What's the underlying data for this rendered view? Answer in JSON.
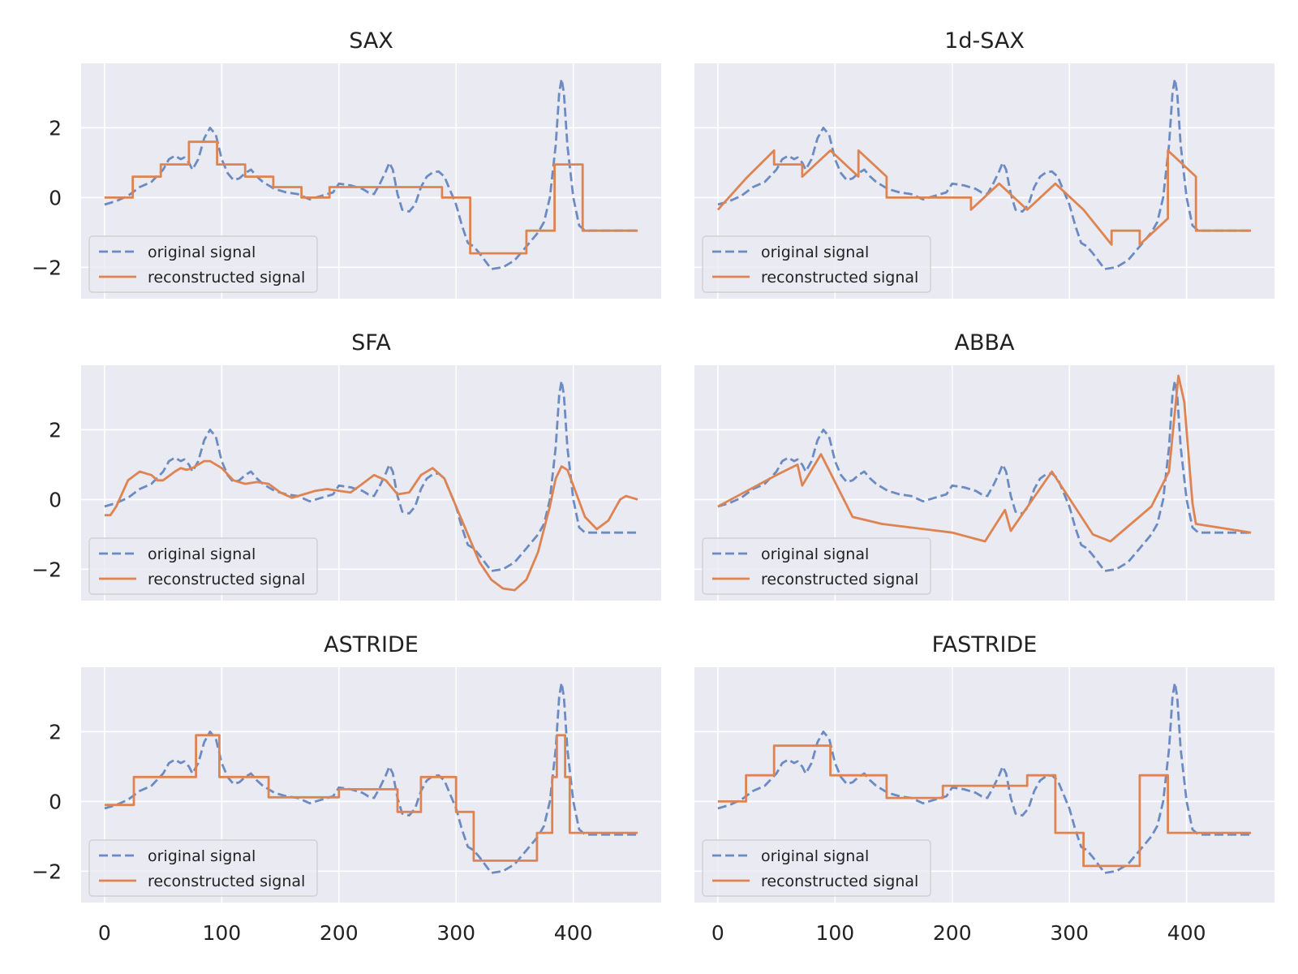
{
  "chart_data": {
    "type": "line",
    "layout": "3x2 grid of subplots, shared x and y axes",
    "x_ticks": [
      0,
      100,
      200,
      300,
      400
    ],
    "y_ticks": [
      -2,
      0,
      2
    ],
    "x_tick_labels": [
      "0",
      "100",
      "200",
      "300",
      "400"
    ],
    "y_tick_labels": [
      "−2",
      "0",
      "2"
    ],
    "xlim": [
      -20,
      475
    ],
    "ylim": [
      -2.9,
      3.85
    ],
    "legend_placement": "lower-left",
    "legend": [
      {
        "label": "original signal",
        "style": "dashed",
        "color": "#6b8bc3"
      },
      {
        "label": "reconstructed signal",
        "style": "solid",
        "color": "#dd8452"
      }
    ],
    "original_signal": {
      "name": "original signal",
      "points": [
        [
          0,
          -0.2
        ],
        [
          10,
          -0.1
        ],
        [
          20,
          0.05
        ],
        [
          30,
          0.3
        ],
        [
          40,
          0.45
        ],
        [
          50,
          0.8
        ],
        [
          55,
          1.1
        ],
        [
          60,
          1.2
        ],
        [
          65,
          1.1
        ],
        [
          68,
          1.15
        ],
        [
          72,
          1.0
        ],
        [
          75,
          0.8
        ],
        [
          80,
          1.1
        ],
        [
          85,
          1.7
        ],
        [
          90,
          2.0
        ],
        [
          95,
          1.8
        ],
        [
          100,
          1.1
        ],
        [
          105,
          0.7
        ],
        [
          110,
          0.5
        ],
        [
          115,
          0.55
        ],
        [
          120,
          0.7
        ],
        [
          125,
          0.8
        ],
        [
          130,
          0.6
        ],
        [
          135,
          0.45
        ],
        [
          145,
          0.25
        ],
        [
          155,
          0.15
        ],
        [
          165,
          0.1
        ],
        [
          175,
          -0.05
        ],
        [
          185,
          0.05
        ],
        [
          195,
          0.15
        ],
        [
          200,
          0.4
        ],
        [
          210,
          0.35
        ],
        [
          220,
          0.25
        ],
        [
          225,
          0.15
        ],
        [
          230,
          0.1
        ],
        [
          235,
          0.4
        ],
        [
          240,
          0.75
        ],
        [
          243,
          1.0
        ],
        [
          246,
          0.8
        ],
        [
          250,
          0.1
        ],
        [
          254,
          -0.35
        ],
        [
          260,
          -0.4
        ],
        [
          265,
          -0.2
        ],
        [
          270,
          0.3
        ],
        [
          275,
          0.6
        ],
        [
          280,
          0.72
        ],
        [
          285,
          0.75
        ],
        [
          290,
          0.6
        ],
        [
          295,
          0.2
        ],
        [
          300,
          -0.2
        ],
        [
          305,
          -0.8
        ],
        [
          310,
          -1.3
        ],
        [
          315,
          -1.4
        ],
        [
          320,
          -1.6
        ],
        [
          330,
          -2.05
        ],
        [
          340,
          -2.0
        ],
        [
          350,
          -1.8
        ],
        [
          360,
          -1.4
        ],
        [
          370,
          -1.0
        ],
        [
          375,
          -0.7
        ],
        [
          380,
          0.0
        ],
        [
          385,
          1.5
        ],
        [
          388,
          3.0
        ],
        [
          390,
          3.4
        ],
        [
          392,
          3.0
        ],
        [
          395,
          1.5
        ],
        [
          400,
          0.0
        ],
        [
          405,
          -0.8
        ],
        [
          410,
          -0.95
        ],
        [
          420,
          -0.95
        ],
        [
          430,
          -0.95
        ],
        [
          440,
          -0.95
        ],
        [
          455,
          -0.95
        ]
      ]
    },
    "subplots": [
      {
        "title": "SAX",
        "reconstructed": [
          [
            0,
            0
          ],
          [
            24,
            0
          ],
          [
            24,
            0.6
          ],
          [
            48,
            0.6
          ],
          [
            48,
            0.95
          ],
          [
            72,
            0.95
          ],
          [
            72,
            1.6
          ],
          [
            96,
            1.6
          ],
          [
            96,
            0.95
          ],
          [
            120,
            0.95
          ],
          [
            120,
            0.6
          ],
          [
            144,
            0.6
          ],
          [
            144,
            0.3
          ],
          [
            168,
            0.3
          ],
          [
            168,
            0
          ],
          [
            192,
            0
          ],
          [
            192,
            0.3
          ],
          [
            216,
            0.3
          ],
          [
            240,
            0.3
          ],
          [
            264,
            0.3
          ],
          [
            288,
            0.3
          ],
          [
            288,
            0
          ],
          [
            312,
            0
          ],
          [
            312,
            -1.6
          ],
          [
            336,
            -1.6
          ],
          [
            360,
            -1.6
          ],
          [
            360,
            -0.95
          ],
          [
            384,
            -0.95
          ],
          [
            384,
            0.95
          ],
          [
            408,
            0.95
          ],
          [
            408,
            -0.95
          ],
          [
            432,
            -0.95
          ],
          [
            455,
            -0.95
          ]
        ]
      },
      {
        "title": "1d-SAX",
        "reconstructed": [
          [
            0,
            -0.35
          ],
          [
            24,
            0.55
          ],
          [
            48,
            1.35
          ],
          [
            48,
            0.95
          ],
          [
            72,
            0.95
          ],
          [
            72,
            0.6
          ],
          [
            96,
            1.35
          ],
          [
            120,
            0.6
          ],
          [
            120,
            1.35
          ],
          [
            144,
            0.6
          ],
          [
            144,
            0
          ],
          [
            168,
            0
          ],
          [
            192,
            0
          ],
          [
            216,
            0
          ],
          [
            216,
            -0.35
          ],
          [
            240,
            0.4
          ],
          [
            264,
            -0.35
          ],
          [
            288,
            0.4
          ],
          [
            312,
            -0.35
          ],
          [
            336,
            -1.35
          ],
          [
            336,
            -0.95
          ],
          [
            360,
            -0.95
          ],
          [
            360,
            -1.35
          ],
          [
            384,
            -0.6
          ],
          [
            384,
            1.35
          ],
          [
            408,
            0.6
          ],
          [
            408,
            -0.95
          ],
          [
            432,
            -0.95
          ],
          [
            455,
            -0.95
          ]
        ]
      },
      {
        "title": "SFA",
        "reconstructed": [
          [
            0,
            -0.45
          ],
          [
            5,
            -0.45
          ],
          [
            10,
            -0.2
          ],
          [
            20,
            0.55
          ],
          [
            30,
            0.8
          ],
          [
            40,
            0.7
          ],
          [
            45,
            0.55
          ],
          [
            50,
            0.55
          ],
          [
            60,
            0.8
          ],
          [
            65,
            0.9
          ],
          [
            70,
            0.85
          ],
          [
            75,
            0.9
          ],
          [
            85,
            1.1
          ],
          [
            90,
            1.1
          ],
          [
            100,
            0.9
          ],
          [
            110,
            0.55
          ],
          [
            120,
            0.45
          ],
          [
            130,
            0.5
          ],
          [
            140,
            0.45
          ],
          [
            150,
            0.2
          ],
          [
            160,
            0.05
          ],
          [
            170,
            0.15
          ],
          [
            180,
            0.25
          ],
          [
            190,
            0.3
          ],
          [
            200,
            0.25
          ],
          [
            210,
            0.2
          ],
          [
            220,
            0.45
          ],
          [
            230,
            0.7
          ],
          [
            240,
            0.55
          ],
          [
            250,
            0.15
          ],
          [
            260,
            0.2
          ],
          [
            270,
            0.7
          ],
          [
            280,
            0.9
          ],
          [
            290,
            0.6
          ],
          [
            300,
            -0.2
          ],
          [
            310,
            -1.0
          ],
          [
            320,
            -1.8
          ],
          [
            330,
            -2.3
          ],
          [
            340,
            -2.55
          ],
          [
            350,
            -2.6
          ],
          [
            360,
            -2.3
          ],
          [
            370,
            -1.5
          ],
          [
            380,
            -0.2
          ],
          [
            385,
            0.6
          ],
          [
            390,
            0.95
          ],
          [
            395,
            0.85
          ],
          [
            400,
            0.4
          ],
          [
            410,
            -0.5
          ],
          [
            420,
            -0.85
          ],
          [
            430,
            -0.6
          ],
          [
            440,
            0.0
          ],
          [
            445,
            0.1
          ],
          [
            450,
            0.05
          ],
          [
            455,
            0.0
          ]
        ]
      },
      {
        "title": "ABBA",
        "reconstructed": [
          [
            0,
            -0.2
          ],
          [
            25,
            0.25
          ],
          [
            50,
            0.7
          ],
          [
            68,
            1.0
          ],
          [
            72,
            0.4
          ],
          [
            88,
            1.3
          ],
          [
            115,
            -0.5
          ],
          [
            140,
            -0.7
          ],
          [
            200,
            -0.95
          ],
          [
            228,
            -1.2
          ],
          [
            245,
            -0.3
          ],
          [
            250,
            -0.9
          ],
          [
            285,
            0.8
          ],
          [
            320,
            -1.0
          ],
          [
            335,
            -1.2
          ],
          [
            370,
            -0.2
          ],
          [
            385,
            0.8
          ],
          [
            393,
            3.55
          ],
          [
            398,
            2.8
          ],
          [
            405,
            -0.1
          ],
          [
            408,
            -0.7
          ],
          [
            455,
            -0.95
          ]
        ]
      },
      {
        "title": "ASTRIDE",
        "reconstructed": [
          [
            0,
            -0.1
          ],
          [
            25,
            -0.1
          ],
          [
            25,
            0.7
          ],
          [
            50,
            0.7
          ],
          [
            78,
            0.7
          ],
          [
            78,
            1.9
          ],
          [
            98,
            1.9
          ],
          [
            98,
            0.7
          ],
          [
            140,
            0.7
          ],
          [
            140,
            0.12
          ],
          [
            200,
            0.12
          ],
          [
            200,
            0.35
          ],
          [
            250,
            0.35
          ],
          [
            250,
            -0.3
          ],
          [
            270,
            -0.3
          ],
          [
            270,
            0.7
          ],
          [
            300,
            0.7
          ],
          [
            300,
            -0.3
          ],
          [
            315,
            -0.3
          ],
          [
            315,
            -1.7
          ],
          [
            330,
            -1.7
          ],
          [
            369,
            -1.7
          ],
          [
            369,
            -0.9
          ],
          [
            382,
            -0.9
          ],
          [
            382,
            0.7
          ],
          [
            386,
            0.7
          ],
          [
            386,
            1.9
          ],
          [
            393,
            1.9
          ],
          [
            393,
            0.7
          ],
          [
            397,
            0.7
          ],
          [
            397,
            -0.9
          ],
          [
            455,
            -0.9
          ]
        ]
      },
      {
        "title": "FASTRIDE",
        "reconstructed": [
          [
            0,
            0
          ],
          [
            24,
            0
          ],
          [
            24,
            0.75
          ],
          [
            48,
            0.75
          ],
          [
            48,
            1.6
          ],
          [
            96,
            1.6
          ],
          [
            96,
            0.75
          ],
          [
            144,
            0.75
          ],
          [
            144,
            0.1
          ],
          [
            192,
            0.1
          ],
          [
            192,
            0.45
          ],
          [
            240,
            0.45
          ],
          [
            264,
            0.45
          ],
          [
            264,
            0.75
          ],
          [
            288,
            0.75
          ],
          [
            288,
            -0.9
          ],
          [
            312,
            -0.9
          ],
          [
            312,
            -1.85
          ],
          [
            336,
            -1.85
          ],
          [
            360,
            -1.85
          ],
          [
            360,
            0.75
          ],
          [
            384,
            0.75
          ],
          [
            384,
            -0.9
          ],
          [
            408,
            -0.9
          ],
          [
            455,
            -0.9
          ]
        ]
      }
    ]
  }
}
